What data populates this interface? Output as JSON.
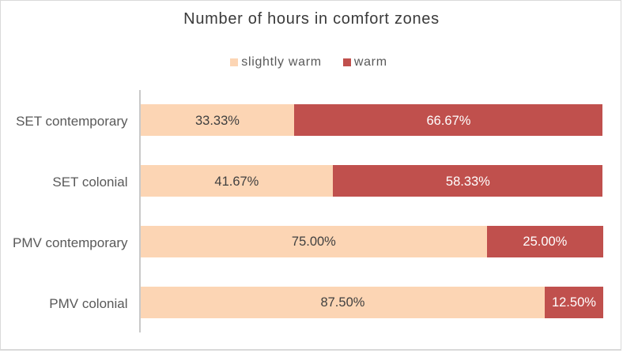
{
  "frame": {
    "background": "#ffffff",
    "border_color": "#d9d9d9"
  },
  "chart_data": {
    "type": "bar",
    "orientation": "horizontal",
    "stacked": true,
    "title": "Number of hours in comfort zones",
    "categories": [
      "SET contemporary",
      "SET colonial",
      "PMV contemporary",
      "PMV colonial"
    ],
    "series": [
      {
        "name": "slightly warm",
        "color": "#fcd5b4",
        "values": [
          33.33,
          41.67,
          75.0,
          87.5
        ],
        "data_labels": [
          "33.33%",
          "41.67%",
          "75.00%",
          "87.50%"
        ],
        "label_color": "#404040"
      },
      {
        "name": "warm",
        "color": "#c0504d",
        "values": [
          66.67,
          58.33,
          25.0,
          12.5
        ],
        "data_labels": [
          "66.67%",
          "58.33%",
          "25.00%",
          "12.50%"
        ],
        "label_color": "#ffffff"
      }
    ],
    "xlim": [
      0,
      100
    ],
    "grid": false,
    "legend_position": "top",
    "axis_line_color": "#c9c9c9",
    "category_label_color": "#595959",
    "title_color": "#3a3a3a"
  }
}
